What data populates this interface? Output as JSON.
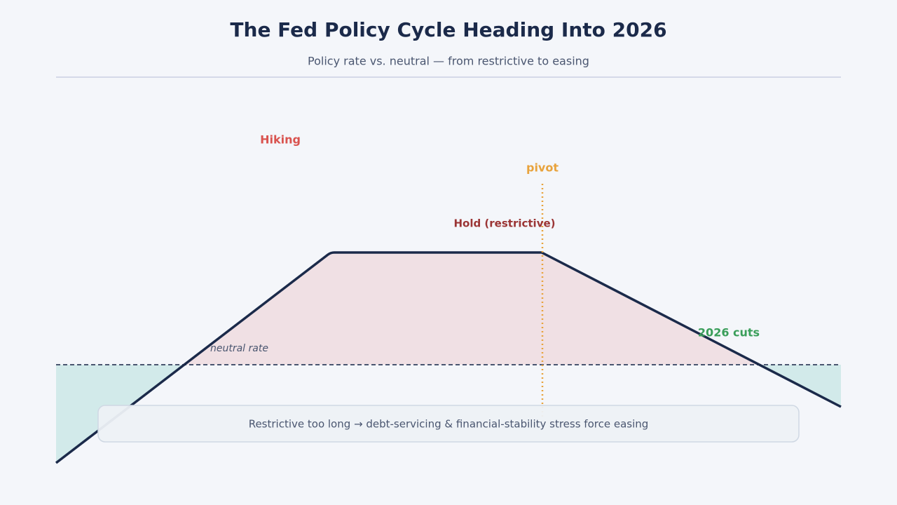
{
  "header": {
    "title": "The Fed Policy Cycle Heading Into 2026",
    "subtitle": "Policy rate vs. neutral — from restrictive to easing"
  },
  "diagram": {
    "labels": {
      "hiking": "Hiking",
      "pivot": "pivot",
      "hold": "Hold (restrictive)",
      "cuts": "2026 cuts",
      "neutral": "neutral rate"
    },
    "callout": "Restrictive too long → debt-servicing & financial-stability stress force easing"
  }
}
